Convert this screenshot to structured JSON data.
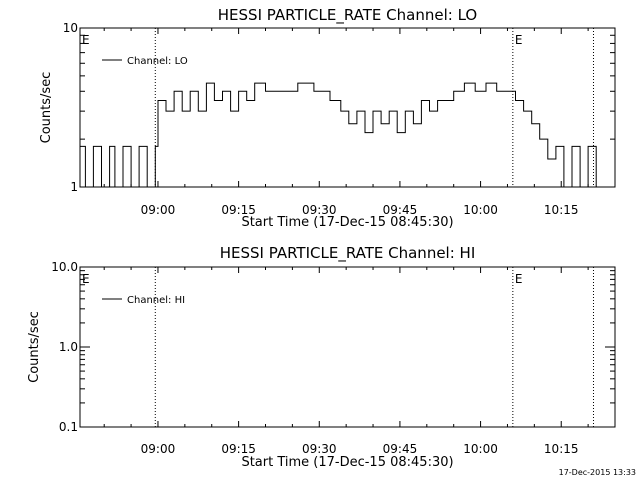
{
  "footer_timestamp": "17-Dec-2015 13:33",
  "chart_data": [
    {
      "type": "line",
      "title": "HESSI PARTICLE_RATE Channel: LO",
      "xlabel": "Start Time (17-Dec-15 08:45:30)",
      "ylabel": "Counts/sec",
      "y_scale": "log",
      "ylim": [
        1,
        10
      ],
      "y_ticks": [
        {
          "value": 1,
          "label": "1"
        },
        {
          "value": 10,
          "label": "10"
        }
      ],
      "xlim": [
        "08:45:30",
        "10:25:00"
      ],
      "x_ticks": [
        "09:00",
        "09:15",
        "09:30",
        "09:45",
        "10:00",
        "10:15"
      ],
      "legend": {
        "placement": "top-left",
        "entries": [
          "Channel: LO"
        ]
      },
      "markers": [
        {
          "time": "08:45:30",
          "label": "E",
          "line": false
        },
        {
          "time": "08:59:30",
          "label": "",
          "line": true
        },
        {
          "time": "10:06:00",
          "label": "E",
          "line": true
        },
        {
          "time": "10:21:00",
          "label": "",
          "line": true
        }
      ],
      "series": [
        {
          "name": "Channel: LO",
          "x": [
            "08:45:30",
            "08:46:30",
            "08:48:00",
            "08:49:30",
            "08:51:00",
            "08:52:00",
            "08:53:30",
            "08:55:00",
            "08:56:30",
            "08:58:00",
            "08:59:30",
            "09:00:00",
            "09:01:30",
            "09:03:00",
            "09:04:30",
            "09:06:00",
            "09:07:30",
            "09:09:00",
            "09:10:30",
            "09:12:00",
            "09:13:30",
            "09:15:00",
            "09:16:30",
            "09:18:00",
            "09:20:00",
            "09:23:00",
            "09:26:00",
            "09:29:00",
            "09:32:00",
            "09:34:00",
            "09:35:30",
            "09:37:00",
            "09:38:30",
            "09:40:00",
            "09:41:30",
            "09:43:00",
            "09:44:30",
            "09:46:00",
            "09:47:30",
            "09:49:00",
            "09:50:30",
            "09:52:00",
            "09:53:30",
            "09:55:00",
            "09:57:00",
            "09:59:00",
            "10:01:00",
            "10:03:00",
            "10:05:00",
            "10:06:30",
            "10:08:00",
            "10:09:30",
            "10:11:00",
            "10:12:30",
            "10:14:00",
            "10:15:30",
            "10:17:00",
            "10:18:30",
            "10:20:00",
            "10:21:30"
          ],
          "y": [
            1.8,
            1.0,
            1.8,
            1.0,
            1.8,
            1.0,
            1.8,
            1.0,
            1.8,
            1.0,
            1.8,
            3.5,
            3.0,
            4.0,
            3.0,
            4.0,
            3.0,
            4.5,
            3.5,
            4.0,
            3.0,
            4.0,
            3.5,
            4.5,
            4.0,
            4.0,
            4.5,
            4.0,
            3.5,
            3.0,
            2.5,
            3.0,
            2.2,
            3.0,
            2.5,
            3.0,
            2.2,
            3.0,
            2.5,
            3.5,
            3.0,
            3.5,
            3.5,
            4.0,
            4.5,
            4.0,
            4.5,
            4.0,
            4.0,
            3.5,
            3.0,
            2.5,
            2.0,
            1.5,
            1.8,
            1.0,
            1.8,
            1.0,
            1.8,
            1.0
          ]
        }
      ]
    },
    {
      "type": "line",
      "title": "HESSI PARTICLE_RATE Channel: HI",
      "xlabel": "Start Time (17-Dec-15 08:45:30)",
      "ylabel": "Counts/sec",
      "y_scale": "log",
      "ylim": [
        0.1,
        10.0
      ],
      "y_ticks": [
        {
          "value": 0.1,
          "label": "0.1"
        },
        {
          "value": 1.0,
          "label": "1.0"
        },
        {
          "value": 10.0,
          "label": "10.0"
        }
      ],
      "xlim": [
        "08:45:30",
        "10:25:00"
      ],
      "x_ticks": [
        "09:00",
        "09:15",
        "09:30",
        "09:45",
        "10:00",
        "10:15"
      ],
      "legend": {
        "placement": "top-left",
        "entries": [
          "Channel: HI"
        ]
      },
      "markers": [
        {
          "time": "08:45:30",
          "label": "E",
          "line": false
        },
        {
          "time": "08:59:30",
          "label": "",
          "line": true
        },
        {
          "time": "10:06:00",
          "label": "E",
          "line": true
        },
        {
          "time": "10:21:00",
          "label": "",
          "line": true
        }
      ],
      "series": [
        {
          "name": "Channel: HI",
          "x": [],
          "y": []
        }
      ]
    }
  ]
}
